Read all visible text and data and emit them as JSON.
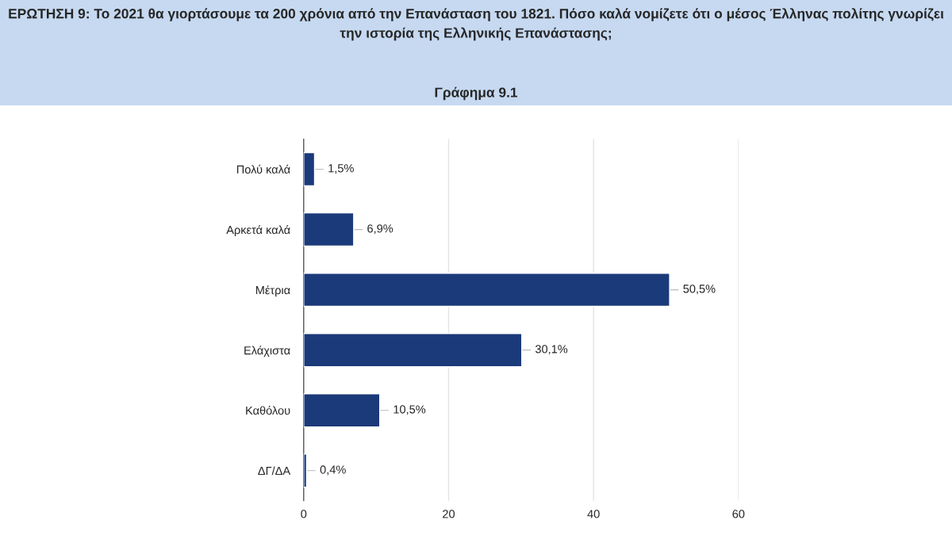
{
  "chart_data": {
    "type": "bar",
    "orientation": "horizontal",
    "title": "ΕΡΩΤΗΣΗ 9: Το 2021 θα γιορτάσουμε τα 200 χρόνια από την Επανάσταση του 1821. Πόσο καλά νομίζετε ότι ο μέσος Έλληνας πολίτης γνωρίζει την ιστορία της Ελληνικής Επανάστασης;",
    "subtitle": "Γράφημα 9.1",
    "categories": [
      "Πολύ καλά",
      "Αρκετά καλά",
      "Μέτρια",
      "Ελάχιστα",
      "Καθόλου",
      "ΔΓ/ΔΑ"
    ],
    "values": [
      1.5,
      6.9,
      50.5,
      30.1,
      10.5,
      0.4
    ],
    "value_labels": [
      "1,5%",
      "6,9%",
      "50,5%",
      "30,1%",
      "10,5%",
      "0,4%"
    ],
    "color": "#1b3a7a",
    "xlim": [
      0,
      60
    ],
    "xticks": [
      0,
      20,
      40,
      60
    ],
    "grid": "x"
  }
}
